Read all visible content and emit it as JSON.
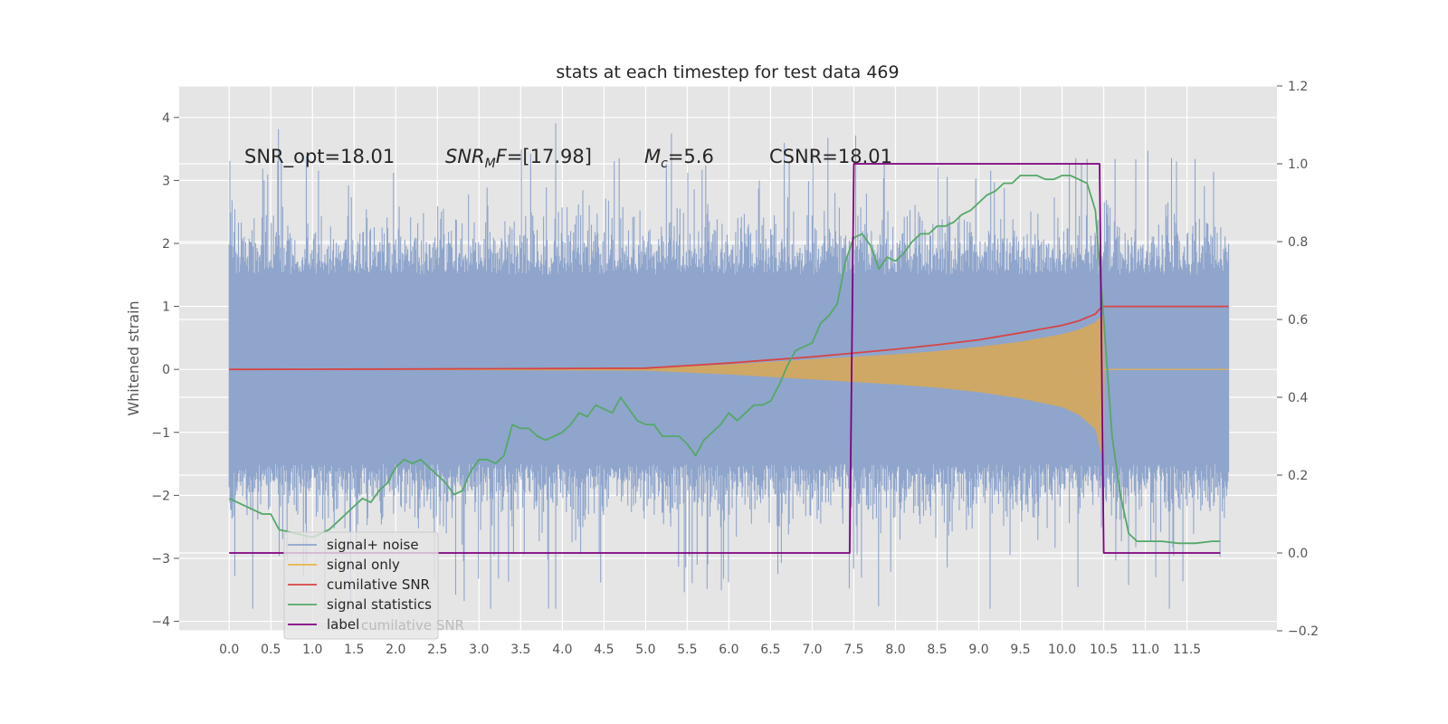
{
  "chart_data": {
    "type": "line",
    "title": "stats at each timestep for test data 469",
    "ylabel": "Whitened strain",
    "xlim": [
      -0.6,
      12.58
    ],
    "ylim": [
      -4.15,
      4.5
    ],
    "y2lim": [
      -0.2,
      1.2
    ],
    "x_ticks": [
      "0.0",
      "0.5",
      "1.0",
      "1.5",
      "2.0",
      "2.5",
      "3.0",
      "3.5",
      "4.0",
      "4.5",
      "5.0",
      "5.5",
      "6.0",
      "6.5",
      "7.0",
      "7.5",
      "8.0",
      "8.5",
      "9.0",
      "9.5",
      "10.0",
      "10.5",
      "11.0",
      "11.5"
    ],
    "y_ticks": [
      "4",
      "3",
      "2",
      "1",
      "0",
      "−1",
      "−2",
      "−3",
      "−4"
    ],
    "y2_ticks": [
      "1.2",
      "1.0",
      "0.8",
      "0.6",
      "0.4",
      "0.2",
      "0.0",
      "−0.2"
    ],
    "grid": true,
    "legend_position": "lower-left",
    "legend_background_text": "cumilative SNR",
    "annotations": [
      {
        "key": "snr_opt",
        "text": "SNR_opt=18.01"
      },
      {
        "key": "snr_mf",
        "text": "[17.98]"
      },
      {
        "key": "mc",
        "text": "=5.6"
      },
      {
        "key": "csnr",
        "text": "CSNR=18.01"
      }
    ],
    "annotation_math": {
      "snr_mf_symbol": "SNR",
      "snr_mf_sub": "M",
      "snr_mf_tail": "F=",
      "mc_symbol": "M",
      "mc_sub": "c"
    },
    "series": [
      {
        "name": "signal+ noise",
        "color": "#8fa5cc",
        "axis": "left",
        "description_range": [
          -3.8,
          4.1
        ],
        "x_range": [
          0.0,
          12.0
        ]
      },
      {
        "name": "signal only",
        "color": "#e8b54a",
        "axis": "left",
        "x": [
          0.0,
          5.0,
          6.0,
          7.0,
          7.5,
          8.0,
          8.5,
          9.0,
          9.5,
          10.0,
          10.2,
          10.4,
          10.5,
          10.51,
          12.0
        ],
        "upper": [
          0.0,
          0.02,
          0.08,
          0.16,
          0.2,
          0.24,
          0.29,
          0.36,
          0.44,
          0.56,
          0.63,
          0.75,
          0.9,
          0.0,
          0.0
        ],
        "lower": [
          0.0,
          -0.02,
          -0.08,
          -0.16,
          -0.2,
          -0.24,
          -0.29,
          -0.36,
          -0.46,
          -0.6,
          -0.72,
          -0.95,
          -1.5,
          0.0,
          0.0
        ]
      },
      {
        "name": "cumilative SNR",
        "color": "#d64545",
        "axis": "left",
        "x": [
          0.0,
          1.0,
          2.0,
          3.0,
          4.0,
          5.0,
          5.5,
          6.0,
          6.5,
          7.0,
          7.5,
          8.0,
          8.5,
          9.0,
          9.5,
          10.0,
          10.2,
          10.4,
          10.45,
          10.5,
          12.0
        ],
        "values": [
          0.0,
          0.003,
          0.006,
          0.01,
          0.014,
          0.02,
          0.06,
          0.1,
          0.15,
          0.2,
          0.26,
          0.32,
          0.39,
          0.47,
          0.58,
          0.7,
          0.77,
          0.88,
          0.96,
          1.0,
          1.0
        ]
      },
      {
        "name": "signal statistics",
        "color": "#55a868",
        "axis": "right",
        "x": [
          0.0,
          0.1,
          0.2,
          0.3,
          0.4,
          0.5,
          0.6,
          0.8,
          1.0,
          1.2,
          1.4,
          1.5,
          1.6,
          1.7,
          1.8,
          1.9,
          2.0,
          2.1,
          2.2,
          2.3,
          2.4,
          2.5,
          2.6,
          2.7,
          2.8,
          2.9,
          3.0,
          3.1,
          3.2,
          3.3,
          3.4,
          3.5,
          3.6,
          3.7,
          3.8,
          3.9,
          4.0,
          4.1,
          4.2,
          4.3,
          4.4,
          4.5,
          4.6,
          4.7,
          4.8,
          4.9,
          5.0,
          5.1,
          5.2,
          5.3,
          5.4,
          5.5,
          5.6,
          5.7,
          5.8,
          5.9,
          6.0,
          6.1,
          6.2,
          6.3,
          6.4,
          6.5,
          6.6,
          6.7,
          6.8,
          6.9,
          7.0,
          7.1,
          7.2,
          7.3,
          7.4,
          7.5,
          7.6,
          7.7,
          7.8,
          7.9,
          8.0,
          8.1,
          8.2,
          8.3,
          8.4,
          8.5,
          8.6,
          8.7,
          8.8,
          8.9,
          9.0,
          9.1,
          9.2,
          9.3,
          9.4,
          9.5,
          9.6,
          9.7,
          9.8,
          9.9,
          10.0,
          10.1,
          10.2,
          10.3,
          10.4,
          10.5,
          10.6,
          10.7,
          10.8,
          10.9,
          11.0,
          11.2,
          11.4,
          11.6,
          11.8,
          11.9
        ],
        "values": [
          0.14,
          0.13,
          0.12,
          0.11,
          0.1,
          0.1,
          0.06,
          0.05,
          0.04,
          0.06,
          0.1,
          0.12,
          0.14,
          0.13,
          0.16,
          0.18,
          0.22,
          0.24,
          0.23,
          0.24,
          0.22,
          0.2,
          0.18,
          0.15,
          0.16,
          0.21,
          0.24,
          0.24,
          0.23,
          0.25,
          0.33,
          0.32,
          0.32,
          0.3,
          0.29,
          0.3,
          0.31,
          0.33,
          0.36,
          0.35,
          0.38,
          0.37,
          0.36,
          0.4,
          0.37,
          0.34,
          0.33,
          0.33,
          0.3,
          0.3,
          0.3,
          0.28,
          0.25,
          0.29,
          0.31,
          0.33,
          0.36,
          0.34,
          0.36,
          0.38,
          0.38,
          0.39,
          0.43,
          0.48,
          0.52,
          0.53,
          0.54,
          0.59,
          0.61,
          0.64,
          0.75,
          0.81,
          0.82,
          0.79,
          0.73,
          0.76,
          0.75,
          0.77,
          0.8,
          0.82,
          0.82,
          0.84,
          0.84,
          0.85,
          0.87,
          0.88,
          0.9,
          0.92,
          0.93,
          0.95,
          0.95,
          0.97,
          0.97,
          0.97,
          0.96,
          0.96,
          0.97,
          0.97,
          0.96,
          0.95,
          0.88,
          0.6,
          0.3,
          0.15,
          0.05,
          0.03,
          0.03,
          0.03,
          0.025,
          0.025,
          0.03,
          0.03
        ]
      },
      {
        "name": "label",
        "color": "#800080",
        "axis": "right",
        "x": [
          0.0,
          7.45,
          7.5,
          10.45,
          10.5,
          11.9
        ],
        "values": [
          0.0,
          0.0,
          1.0,
          1.0,
          0.0,
          0.0
        ]
      }
    ]
  },
  "colors": {
    "plot_background": "#e5e5e5",
    "grid": "#ffffff",
    "text": "#262626"
  }
}
